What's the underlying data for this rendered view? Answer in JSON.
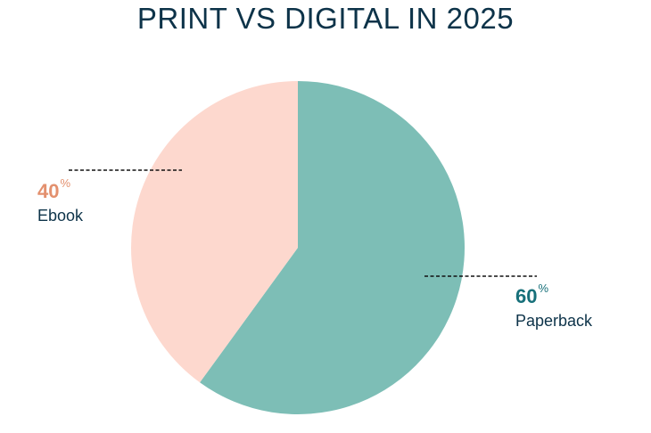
{
  "chart_data": {
    "type": "pie",
    "title": "PRINT VS DIGITAL IN 2025",
    "slices": [
      {
        "label": "Paperback",
        "value": 60,
        "display": "60",
        "unit": "%",
        "color": "#7dbeb6",
        "label_color": "#17707a"
      },
      {
        "label": "Ebook",
        "value": 40,
        "display": "40",
        "unit": "%",
        "color": "#fdd8ce",
        "label_color": "#e3906e"
      }
    ],
    "start_angle_deg": 0,
    "direction": "clockwise",
    "legend": "none"
  }
}
